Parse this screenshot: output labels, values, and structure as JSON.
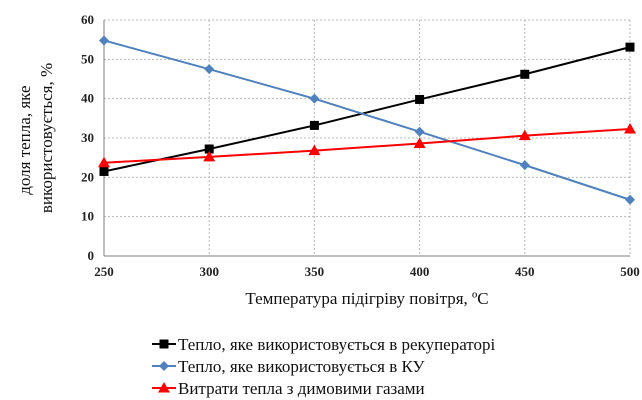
{
  "chart_data": {
    "type": "line",
    "xlabel": "Температура підігріву повітря, ºC",
    "ylabel_lines": [
      "доля тепла, яке",
      "використовується, %"
    ],
    "x": [
      250,
      300,
      350,
      400,
      450,
      500
    ],
    "xlim": [
      250,
      500
    ],
    "ylim": [
      0,
      60
    ],
    "yticks": [
      0,
      10,
      20,
      30,
      40,
      50,
      60
    ],
    "grid": true,
    "legend": "bottom",
    "series": [
      {
        "name": "Тепло, яке використовується в рекуператорі",
        "values": [
          21.5,
          27.2,
          33.2,
          39.8,
          46.2,
          53.1
        ],
        "color": "#000000",
        "marker": "square"
      },
      {
        "name": "Тепло, яке використовується в КУ",
        "values": [
          54.8,
          47.5,
          40.0,
          31.6,
          23.1,
          14.3
        ],
        "color": "#4f81bd",
        "marker": "diamond"
      },
      {
        "name": "Витрати тепла з димовими газами",
        "values": [
          23.7,
          25.2,
          26.8,
          28.6,
          30.6,
          32.3
        ],
        "color": "#ff0000",
        "marker": "triangle"
      }
    ]
  }
}
